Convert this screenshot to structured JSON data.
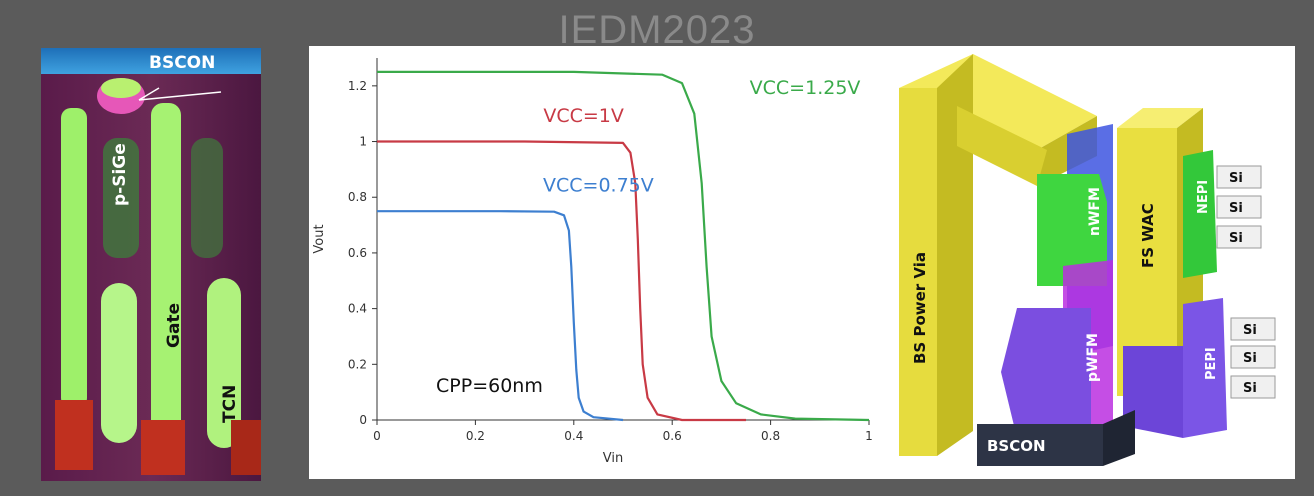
{
  "watermark": "IEDM2023",
  "micrograph": {
    "labels": {
      "bscon": "BSCON",
      "psige": "p-SiGe",
      "gate": "Gate",
      "tcn": "TCN"
    }
  },
  "chart_data": {
    "type": "line",
    "title": "",
    "xlabel": "Vin",
    "ylabel": "Vout",
    "xlim": [
      0,
      1
    ],
    "ylim": [
      0,
      1.3
    ],
    "x_ticks": [
      "0",
      "0.2",
      "0.4",
      "0.6",
      "0.8",
      "1"
    ],
    "y_ticks": [
      "0",
      "0.2",
      "0.4",
      "0.6",
      "0.8",
      "1",
      "1.2"
    ],
    "grid": false,
    "annotation": "CPP=60nm",
    "series": [
      {
        "name": "VCC=0.75V",
        "color": "#3d7fd0",
        "points": [
          [
            0,
            0.75
          ],
          [
            0.25,
            0.75
          ],
          [
            0.36,
            0.748
          ],
          [
            0.38,
            0.735
          ],
          [
            0.39,
            0.68
          ],
          [
            0.395,
            0.55
          ],
          [
            0.4,
            0.35
          ],
          [
            0.405,
            0.18
          ],
          [
            0.41,
            0.08
          ],
          [
            0.42,
            0.03
          ],
          [
            0.44,
            0.01
          ],
          [
            0.5,
            0.0
          ]
        ]
      },
      {
        "name": "VCC=1V",
        "color": "#c83a45",
        "points": [
          [
            0,
            1.0
          ],
          [
            0.3,
            1.0
          ],
          [
            0.5,
            0.995
          ],
          [
            0.515,
            0.96
          ],
          [
            0.525,
            0.85
          ],
          [
            0.53,
            0.65
          ],
          [
            0.535,
            0.4
          ],
          [
            0.54,
            0.2
          ],
          [
            0.55,
            0.08
          ],
          [
            0.57,
            0.02
          ],
          [
            0.62,
            0.0
          ],
          [
            0.75,
            0.0
          ]
        ]
      },
      {
        "name": "VCC=1.25V",
        "color": "#3aaa4a",
        "points": [
          [
            0,
            1.25
          ],
          [
            0.4,
            1.25
          ],
          [
            0.58,
            1.24
          ],
          [
            0.62,
            1.21
          ],
          [
            0.645,
            1.1
          ],
          [
            0.66,
            0.85
          ],
          [
            0.67,
            0.55
          ],
          [
            0.68,
            0.3
          ],
          [
            0.7,
            0.14
          ],
          [
            0.73,
            0.06
          ],
          [
            0.78,
            0.02
          ],
          [
            0.85,
            0.005
          ],
          [
            1.0,
            0.0
          ]
        ]
      }
    ]
  },
  "schematic": {
    "labels": {
      "bs_power_via": "BS Power Via",
      "fs_wac": "FS WAC",
      "nwfm": "nWFM",
      "pwfm": "pWFM",
      "nepi": "NEPI",
      "pepi": "PEPI",
      "bscon": "BSCON",
      "si": [
        "Si",
        "Si",
        "Si",
        "Si",
        "Si",
        "Si"
      ]
    }
  }
}
